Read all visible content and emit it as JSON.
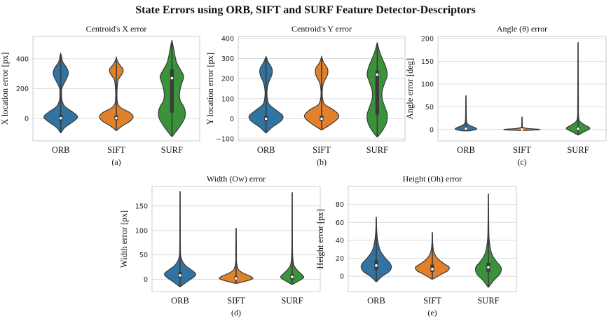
{
  "figure_title": "State Errors using ORB, SIFT and SURF Feature Detector-Descriptors",
  "colors": {
    "ORB": "#3274a1",
    "SIFT": "#e1812c",
    "SURF": "#3a923a",
    "grid": "#dcdcdc",
    "frame": "#cccccc",
    "outline": "#3a3a3a"
  },
  "chart_data": [
    {
      "type": "violin",
      "panel_label": "(a)",
      "title": "Centroid's X error",
      "ylabel": "X location error [px]",
      "ylim": [
        -150,
        550
      ],
      "yticks": [
        "0",
        "200",
        "400"
      ],
      "ytick_values": [
        0,
        200,
        400
      ],
      "categories": [
        "ORB",
        "SIFT",
        "SURF"
      ],
      "series": [
        {
          "category": "ORB",
          "min": -95,
          "max": 435,
          "median": 2,
          "q1": -15,
          "q3": 25,
          "density": [
            [
              -95,
              0.02
            ],
            [
              -60,
              0.25
            ],
            [
              -20,
              0.75
            ],
            [
              10,
              1.0
            ],
            [
              40,
              0.75
            ],
            [
              80,
              0.25
            ],
            [
              120,
              0.08
            ],
            [
              160,
              0.05
            ],
            [
              200,
              0.06
            ],
            [
              240,
              0.22
            ],
            [
              280,
              0.4
            ],
            [
              310,
              0.45
            ],
            [
              340,
              0.35
            ],
            [
              380,
              0.12
            ],
            [
              420,
              0.04
            ],
            [
              435,
              0.0
            ]
          ]
        },
        {
          "category": "SIFT",
          "min": -80,
          "max": 410,
          "median": 2,
          "q1": -10,
          "q3": 20,
          "density": [
            [
              -80,
              0.02
            ],
            [
              -50,
              0.35
            ],
            [
              -15,
              0.85
            ],
            [
              15,
              1.0
            ],
            [
              40,
              0.8
            ],
            [
              70,
              0.3
            ],
            [
              100,
              0.08
            ],
            [
              150,
              0.04
            ],
            [
              200,
              0.05
            ],
            [
              260,
              0.12
            ],
            [
              300,
              0.35
            ],
            [
              330,
              0.4
            ],
            [
              360,
              0.2
            ],
            [
              390,
              0.05
            ],
            [
              410,
              0.0
            ]
          ]
        },
        {
          "category": "SURF",
          "min": -120,
          "max": 525,
          "median": 270,
          "q1": 40,
          "q3": 330,
          "density": [
            [
              -120,
              0.02
            ],
            [
              -80,
              0.3
            ],
            [
              -40,
              0.55
            ],
            [
              0,
              0.75
            ],
            [
              40,
              0.8
            ],
            [
              80,
              0.7
            ],
            [
              120,
              0.5
            ],
            [
              160,
              0.45
            ],
            [
              200,
              0.5
            ],
            [
              240,
              0.6
            ],
            [
              280,
              0.7
            ],
            [
              320,
              0.55
            ],
            [
              370,
              0.3
            ],
            [
              420,
              0.18
            ],
            [
              470,
              0.1
            ],
            [
              525,
              0.0
            ]
          ]
        }
      ]
    },
    {
      "type": "violin",
      "panel_label": "(b)",
      "title": "Centroid's Y error",
      "ylabel": "Y location error [px]",
      "ylim": [
        -110,
        410
      ],
      "yticks": [
        "−100",
        "0",
        "100",
        "200",
        "300",
        "400"
      ],
      "ytick_values": [
        -100,
        0,
        100,
        200,
        300,
        400
      ],
      "categories": [
        "ORB",
        "SIFT",
        "SURF"
      ],
      "series": [
        {
          "category": "ORB",
          "min": -70,
          "max": 310,
          "median": 0,
          "q1": -10,
          "q3": 15,
          "density": [
            [
              -70,
              0.02
            ],
            [
              -40,
              0.4
            ],
            [
              -10,
              0.9
            ],
            [
              15,
              1.0
            ],
            [
              40,
              0.65
            ],
            [
              70,
              0.2
            ],
            [
              100,
              0.08
            ],
            [
              140,
              0.06
            ],
            [
              180,
              0.15
            ],
            [
              220,
              0.35
            ],
            [
              250,
              0.35
            ],
            [
              280,
              0.15
            ],
            [
              310,
              0.0
            ]
          ]
        },
        {
          "category": "SIFT",
          "min": -55,
          "max": 310,
          "median": 0,
          "q1": -10,
          "q3": 15,
          "density": [
            [
              -55,
              0.02
            ],
            [
              -30,
              0.5
            ],
            [
              0,
              0.95
            ],
            [
              20,
              1.0
            ],
            [
              45,
              0.7
            ],
            [
              70,
              0.2
            ],
            [
              100,
              0.06
            ],
            [
              140,
              0.04
            ],
            [
              180,
              0.12
            ],
            [
              220,
              0.35
            ],
            [
              250,
              0.35
            ],
            [
              280,
              0.12
            ],
            [
              310,
              0.0
            ]
          ]
        },
        {
          "category": "SURF",
          "min": -90,
          "max": 380,
          "median": 220,
          "q1": 20,
          "q3": 240,
          "density": [
            [
              -90,
              0.02
            ],
            [
              -60,
              0.3
            ],
            [
              -20,
              0.55
            ],
            [
              20,
              0.6
            ],
            [
              60,
              0.45
            ],
            [
              100,
              0.3
            ],
            [
              140,
              0.3
            ],
            [
              180,
              0.45
            ],
            [
              220,
              0.6
            ],
            [
              260,
              0.5
            ],
            [
              300,
              0.3
            ],
            [
              340,
              0.12
            ],
            [
              380,
              0.0
            ]
          ]
        }
      ]
    },
    {
      "type": "violin",
      "panel_label": "(c)",
      "title": "Angle (θ) error",
      "ylabel": "Angle error [deg]",
      "ylim": [
        -25,
        205
      ],
      "yticks": [
        "0",
        "50",
        "100",
        "150",
        "200"
      ],
      "ytick_values": [
        0,
        50,
        100,
        150,
        200
      ],
      "categories": [
        "ORB",
        "SIFT",
        "SURF"
      ],
      "series": [
        {
          "category": "ORB",
          "min": -3,
          "max": 75,
          "median": 2,
          "q1": 0,
          "q3": 5,
          "density": [
            [
              -3,
              0.2
            ],
            [
              0,
              0.6
            ],
            [
              3,
              0.6
            ],
            [
              7,
              0.35
            ],
            [
              12,
              0.1
            ],
            [
              20,
              0.03
            ],
            [
              40,
              0.02
            ],
            [
              75,
              0.0
            ]
          ]
        },
        {
          "category": "SIFT",
          "min": -2,
          "max": 28,
          "median": 0,
          "q1": 0,
          "q3": 1,
          "density": [
            [
              -2,
              0.3
            ],
            [
              -0.5,
              1.0
            ],
            [
              0.5,
              1.0
            ],
            [
              2,
              0.4
            ],
            [
              5,
              0.05
            ],
            [
              10,
              0.02
            ],
            [
              28,
              0.0
            ]
          ]
        },
        {
          "category": "SURF",
          "min": -12,
          "max": 192,
          "median": 2,
          "q1": 0,
          "q3": 6,
          "density": [
            [
              -12,
              0.02
            ],
            [
              -5,
              0.35
            ],
            [
              2,
              0.7
            ],
            [
              8,
              0.5
            ],
            [
              15,
              0.2
            ],
            [
              25,
              0.04
            ],
            [
              60,
              0.02
            ],
            [
              120,
              0.01
            ],
            [
              192,
              0.0
            ]
          ]
        }
      ]
    },
    {
      "type": "violin",
      "panel_label": "(d)",
      "title": "Width (Ow) error",
      "ylabel": "Width error [px]",
      "ylim": [
        -25,
        190
      ],
      "yticks": [
        "0",
        "50",
        "100",
        "150"
      ],
      "ytick_values": [
        0,
        50,
        100,
        150
      ],
      "categories": [
        "ORB",
        "SIFT",
        "SURF"
      ],
      "series": [
        {
          "category": "ORB",
          "min": -15,
          "max": 180,
          "median": 8,
          "q1": 3,
          "q3": 15,
          "density": [
            [
              -15,
              0.02
            ],
            [
              -5,
              0.45
            ],
            [
              5,
              0.9
            ],
            [
              12,
              1.0
            ],
            [
              20,
              0.7
            ],
            [
              30,
              0.3
            ],
            [
              45,
              0.06
            ],
            [
              70,
              0.02
            ],
            [
              120,
              0.01
            ],
            [
              180,
              0.0
            ]
          ]
        },
        {
          "category": "SIFT",
          "min": -8,
          "max": 105,
          "median": 2,
          "q1": 0,
          "q3": 6,
          "density": [
            [
              -8,
              0.1
            ],
            [
              0,
              1.0
            ],
            [
              5,
              1.0
            ],
            [
              12,
              0.5
            ],
            [
              20,
              0.15
            ],
            [
              35,
              0.03
            ],
            [
              60,
              0.02
            ],
            [
              105,
              0.0
            ]
          ]
        },
        {
          "category": "SURF",
          "min": -10,
          "max": 178,
          "median": 5,
          "q1": 0,
          "q3": 10,
          "density": [
            [
              -10,
              0.05
            ],
            [
              0,
              0.6
            ],
            [
              5,
              0.75
            ],
            [
              12,
              0.55
            ],
            [
              20,
              0.3
            ],
            [
              30,
              0.1
            ],
            [
              50,
              0.03
            ],
            [
              100,
              0.01
            ],
            [
              178,
              0.0
            ]
          ]
        }
      ]
    },
    {
      "type": "violin",
      "panel_label": "(e)",
      "title": "Height (Oh) error",
      "ylabel": "Height error [px]",
      "ylim": [
        -17,
        100
      ],
      "yticks": [
        "0",
        "20",
        "40",
        "60",
        "80"
      ],
      "ytick_values": [
        0,
        20,
        40,
        60,
        80
      ],
      "categories": [
        "ORB",
        "SIFT",
        "SURF"
      ],
      "series": [
        {
          "category": "ORB",
          "min": -6,
          "max": 66,
          "median": 12,
          "q1": 7,
          "q3": 18,
          "density": [
            [
              -6,
              0.02
            ],
            [
              0,
              0.35
            ],
            [
              5,
              0.75
            ],
            [
              10,
              0.9
            ],
            [
              15,
              0.8
            ],
            [
              20,
              0.55
            ],
            [
              28,
              0.25
            ],
            [
              38,
              0.1
            ],
            [
              50,
              0.03
            ],
            [
              66,
              0.0
            ]
          ]
        },
        {
          "category": "SIFT",
          "min": -3,
          "max": 49,
          "median": 8,
          "q1": 5,
          "q3": 13,
          "density": [
            [
              -3,
              0.05
            ],
            [
              2,
              0.5
            ],
            [
              6,
              0.9
            ],
            [
              10,
              1.0
            ],
            [
              14,
              0.7
            ],
            [
              20,
              0.3
            ],
            [
              28,
              0.08
            ],
            [
              38,
              0.02
            ],
            [
              49,
              0.0
            ]
          ]
        },
        {
          "category": "SURF",
          "min": -12,
          "max": 92,
          "median": 10,
          "q1": 5,
          "q3": 15,
          "density": [
            [
              -12,
              0.02
            ],
            [
              -5,
              0.3
            ],
            [
              3,
              0.7
            ],
            [
              10,
              0.75
            ],
            [
              16,
              0.5
            ],
            [
              25,
              0.2
            ],
            [
              40,
              0.05
            ],
            [
              60,
              0.02
            ],
            [
              92,
              0.0
            ]
          ]
        }
      ]
    }
  ]
}
